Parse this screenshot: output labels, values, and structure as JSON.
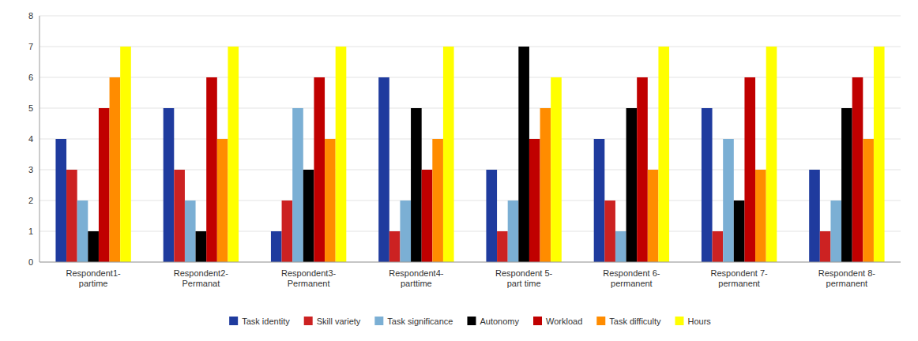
{
  "chart_data": {
    "type": "bar",
    "categories": [
      "Respondent1-\npartime",
      "Respondent2-\nPermanat",
      "Respondent3-\nPermanent",
      "Respondent4-\nparttime",
      "Respondent 5-\npart time",
      "Respondent 6-\npermanent",
      "Respondent 7-\npermanent",
      "Respondent 8-\npermanent"
    ],
    "series": [
      {
        "name": "Task identity",
        "color": "#1F3B9E",
        "values": [
          4,
          5,
          1,
          6,
          3,
          4,
          5,
          3
        ]
      },
      {
        "name": "Skill variety",
        "color": "#CC2222",
        "values": [
          3,
          3,
          2,
          1,
          1,
          2,
          1,
          1
        ]
      },
      {
        "name": "Task significance",
        "color": "#7BAFD4",
        "values": [
          2,
          2,
          5,
          2,
          2,
          1,
          4,
          2
        ]
      },
      {
        "name": "Autonomy",
        "color": "#000000",
        "values": [
          1,
          1,
          3,
          5,
          7,
          5,
          2,
          5
        ]
      },
      {
        "name": "Workload",
        "color": "#C00000",
        "values": [
          5,
          6,
          6,
          3,
          4,
          6,
          6,
          6
        ]
      },
      {
        "name": "Task difficulty",
        "color": "#FF8C00",
        "values": [
          6,
          4,
          4,
          4,
          5,
          3,
          3,
          4
        ]
      },
      {
        "name": "Hours",
        "color": "#FFFF00",
        "values": [
          7,
          7,
          7,
          7,
          6,
          7,
          7,
          7
        ]
      }
    ],
    "ylim": [
      0,
      8
    ],
    "yticks": [
      0,
      1,
      2,
      3,
      4,
      5,
      6,
      7,
      8
    ],
    "grid": true,
    "legend": "bottom"
  }
}
